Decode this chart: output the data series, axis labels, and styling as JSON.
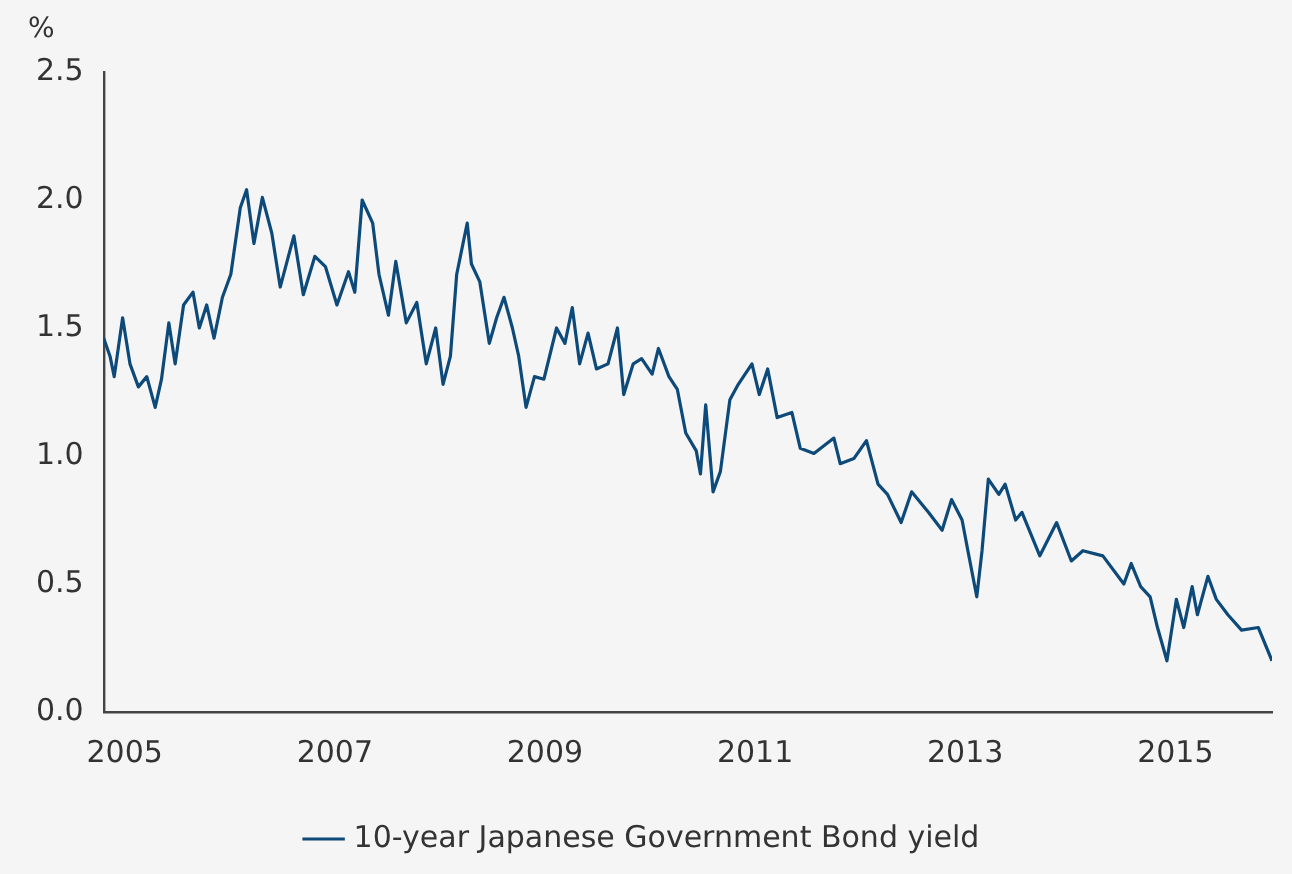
{
  "chart_data": {
    "type": "line",
    "ylabel": "%",
    "xlim": [
      2004.8,
      2015.92
    ],
    "xticks": [
      2005,
      2007,
      2009,
      2011,
      2013,
      2015
    ],
    "ylim": [
      0,
      2.5
    ],
    "yticks": [
      {
        "value": 0,
        "label": "0.0"
      },
      {
        "value": 0.5,
        "label": "0.5"
      },
      {
        "value": 1,
        "label": "1.0"
      },
      {
        "value": 1.5,
        "label": "1.5"
      },
      {
        "value": 2,
        "label": "2.0"
      },
      {
        "value": 2.5,
        "label": "2.5"
      }
    ],
    "grid": false,
    "legend": "bottom",
    "marker": "none",
    "line_style": "solid",
    "series": [
      {
        "name": "10-year Japanese Government Bond yield",
        "color": "#0d4a7a",
        "x": [
          2004.8,
          2004.86,
          2004.9,
          2004.98,
          2005.05,
          2005.13,
          2005.21,
          2005.29,
          2005.35,
          2005.42,
          2005.48,
          2005.56,
          2005.65,
          2005.71,
          2005.78,
          2005.85,
          2005.93,
          2006.01,
          2006.1,
          2006.16,
          2006.23,
          2006.31,
          2006.4,
          2006.48,
          2006.61,
          2006.7,
          2006.81,
          2006.91,
          2007.02,
          2007.13,
          2007.19,
          2007.26,
          2007.36,
          2007.42,
          2007.51,
          2007.58,
          2007.68,
          2007.78,
          2007.87,
          2007.96,
          2008.03,
          2008.1,
          2008.16,
          2008.26,
          2008.3,
          2008.38,
          2008.47,
          2008.54,
          2008.61,
          2008.69,
          2008.75,
          2008.82,
          2008.9,
          2008.99,
          2009.11,
          2009.19,
          2009.26,
          2009.33,
          2009.41,
          2009.49,
          2009.6,
          2009.69,
          2009.75,
          2009.84,
          2009.92,
          2010.02,
          2010.08,
          2010.18,
          2010.26,
          2010.34,
          2010.44,
          2010.48,
          2010.53,
          2010.6,
          2010.67,
          2010.76,
          2010.84,
          2010.97,
          2011.04,
          2011.12,
          2011.21,
          2011.35,
          2011.43,
          2011.56,
          2011.75,
          2011.81,
          2011.94,
          2012.06,
          2012.17,
          2012.26,
          2012.39,
          2012.49,
          2012.65,
          2012.78,
          2012.87,
          2012.97,
          2013.03,
          2013.11,
          2013.16,
          2013.22,
          2013.32,
          2013.38,
          2013.48,
          2013.54,
          2013.71,
          2013.87,
          2014.01,
          2014.12,
          2014.31,
          2014.51,
          2014.58,
          2014.67,
          2014.76,
          2014.83,
          2014.92,
          2015.01,
          2015.08,
          2015.16,
          2015.21,
          2015.31,
          2015.39,
          2015.5,
          2015.63,
          2015.79,
          2015.92
        ],
        "values": [
          1.46,
          1.39,
          1.31,
          1.54,
          1.36,
          1.27,
          1.31,
          1.19,
          1.3,
          1.52,
          1.36,
          1.59,
          1.64,
          1.5,
          1.59,
          1.46,
          1.62,
          1.71,
          1.97,
          2.04,
          1.83,
          2.01,
          1.87,
          1.66,
          1.86,
          1.63,
          1.78,
          1.74,
          1.59,
          1.72,
          1.64,
          2.0,
          1.91,
          1.71,
          1.55,
          1.76,
          1.52,
          1.6,
          1.36,
          1.5,
          1.28,
          1.39,
          1.71,
          1.91,
          1.75,
          1.68,
          1.44,
          1.54,
          1.62,
          1.5,
          1.39,
          1.19,
          1.31,
          1.3,
          1.5,
          1.44,
          1.58,
          1.36,
          1.48,
          1.34,
          1.36,
          1.5,
          1.24,
          1.36,
          1.38,
          1.32,
          1.42,
          1.31,
          1.26,
          1.09,
          1.02,
          0.93,
          1.2,
          0.86,
          0.94,
          1.22,
          1.28,
          1.36,
          1.24,
          1.34,
          1.15,
          1.17,
          1.03,
          1.01,
          1.07,
          0.97,
          0.99,
          1.06,
          0.89,
          0.85,
          0.74,
          0.86,
          0.78,
          0.71,
          0.83,
          0.75,
          0.62,
          0.45,
          0.63,
          0.91,
          0.85,
          0.89,
          0.75,
          0.78,
          0.61,
          0.74,
          0.59,
          0.63,
          0.61,
          0.5,
          0.58,
          0.49,
          0.45,
          0.33,
          0.2,
          0.44,
          0.33,
          0.49,
          0.38,
          0.53,
          0.44,
          0.38,
          0.32,
          0.33,
          0.2
        ]
      }
    ]
  }
}
